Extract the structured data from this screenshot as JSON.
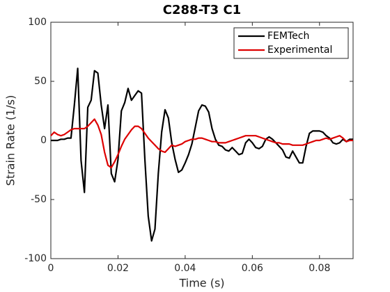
{
  "chart_data": {
    "type": "line",
    "title": "C288-T3 C1",
    "x_label": "Time (s)",
    "y_label": "Strain Rate (1/s)",
    "x": [
      0,
      0.001,
      0.002,
      0.003,
      0.004,
      0.005,
      0.006,
      0.007,
      0.008,
      0.009,
      0.01,
      0.011,
      0.012,
      0.013,
      0.014,
      0.015,
      0.016,
      0.017,
      0.018,
      0.019,
      0.02,
      0.021,
      0.022,
      0.023,
      0.024,
      0.025,
      0.026,
      0.027,
      0.028,
      0.029,
      0.03,
      0.031,
      0.032,
      0.033,
      0.034,
      0.035,
      0.036,
      0.037,
      0.038,
      0.039,
      0.04,
      0.041,
      0.042,
      0.043,
      0.044,
      0.045,
      0.046,
      0.047,
      0.048,
      0.049,
      0.05,
      0.051,
      0.052,
      0.053,
      0.054,
      0.055,
      0.056,
      0.057,
      0.058,
      0.059,
      0.06,
      0.061,
      0.062,
      0.063,
      0.064,
      0.065,
      0.066,
      0.067,
      0.068,
      0.069,
      0.07,
      0.071,
      0.072,
      0.073,
      0.074,
      0.075,
      0.076,
      0.077,
      0.078,
      0.079,
      0.08,
      0.081,
      0.082,
      0.083,
      0.084,
      0.085,
      0.086,
      0.087,
      0.088,
      0.089,
      0.09
    ],
    "series": [
      {
        "name": "FEMTech",
        "color": "#000000",
        "values": [
          0,
          0,
          0,
          1,
          1,
          2,
          2,
          30,
          61,
          -17,
          -44,
          28,
          34,
          59,
          57,
          30,
          10,
          30,
          -28,
          -35,
          -16,
          25,
          32,
          44,
          34,
          38,
          42,
          40,
          -16,
          -64,
          -85,
          -75,
          -28,
          7,
          26,
          19,
          -2,
          -16,
          -27,
          -25,
          -19,
          -12,
          -3,
          11,
          25,
          30,
          29,
          24,
          10,
          1,
          -4,
          -5,
          -8,
          -9,
          -6,
          -9,
          -12,
          -11,
          -2,
          1,
          -2,
          -6,
          -7,
          -5,
          1,
          3,
          1,
          -2,
          -5,
          -8,
          -14,
          -15,
          -9,
          -14,
          -19,
          -19,
          -5,
          6,
          8,
          8,
          8,
          7,
          4,
          2,
          -2,
          -3,
          -2,
          1,
          -1,
          1,
          1
        ]
      },
      {
        "name": "Experimental",
        "color": "#dd0000",
        "values": [
          4,
          7,
          5,
          4,
          5,
          7,
          9,
          10,
          10,
          10,
          10,
          12,
          15,
          18,
          13,
          5,
          -10,
          -21,
          -23,
          -18,
          -12,
          -5,
          1,
          5,
          9,
          12,
          12,
          10,
          6,
          2,
          -1,
          -4,
          -7,
          -9,
          -10,
          -7,
          -4,
          -5,
          -4,
          -3,
          -1,
          0,
          1,
          1,
          2,
          2,
          1,
          0,
          -1,
          -1,
          -2,
          -2,
          -2,
          -1,
          0,
          1,
          2,
          3,
          4,
          4,
          4,
          4,
          3,
          2,
          1,
          0,
          -1,
          -2,
          -2,
          -3,
          -3,
          -3,
          -4,
          -4,
          -4,
          -4,
          -3,
          -2,
          -1,
          0,
          0,
          1,
          2,
          1,
          2,
          3,
          4,
          2,
          -1,
          0,
          0
        ]
      }
    ],
    "xlim": [
      0,
      0.09
    ],
    "ylim": [
      -100,
      100
    ],
    "xticks": [
      0,
      0.02,
      0.04,
      0.06,
      0.08
    ],
    "yticks": [
      -100,
      -50,
      0,
      50,
      100
    ],
    "grid": false,
    "legend": "northeast"
  }
}
